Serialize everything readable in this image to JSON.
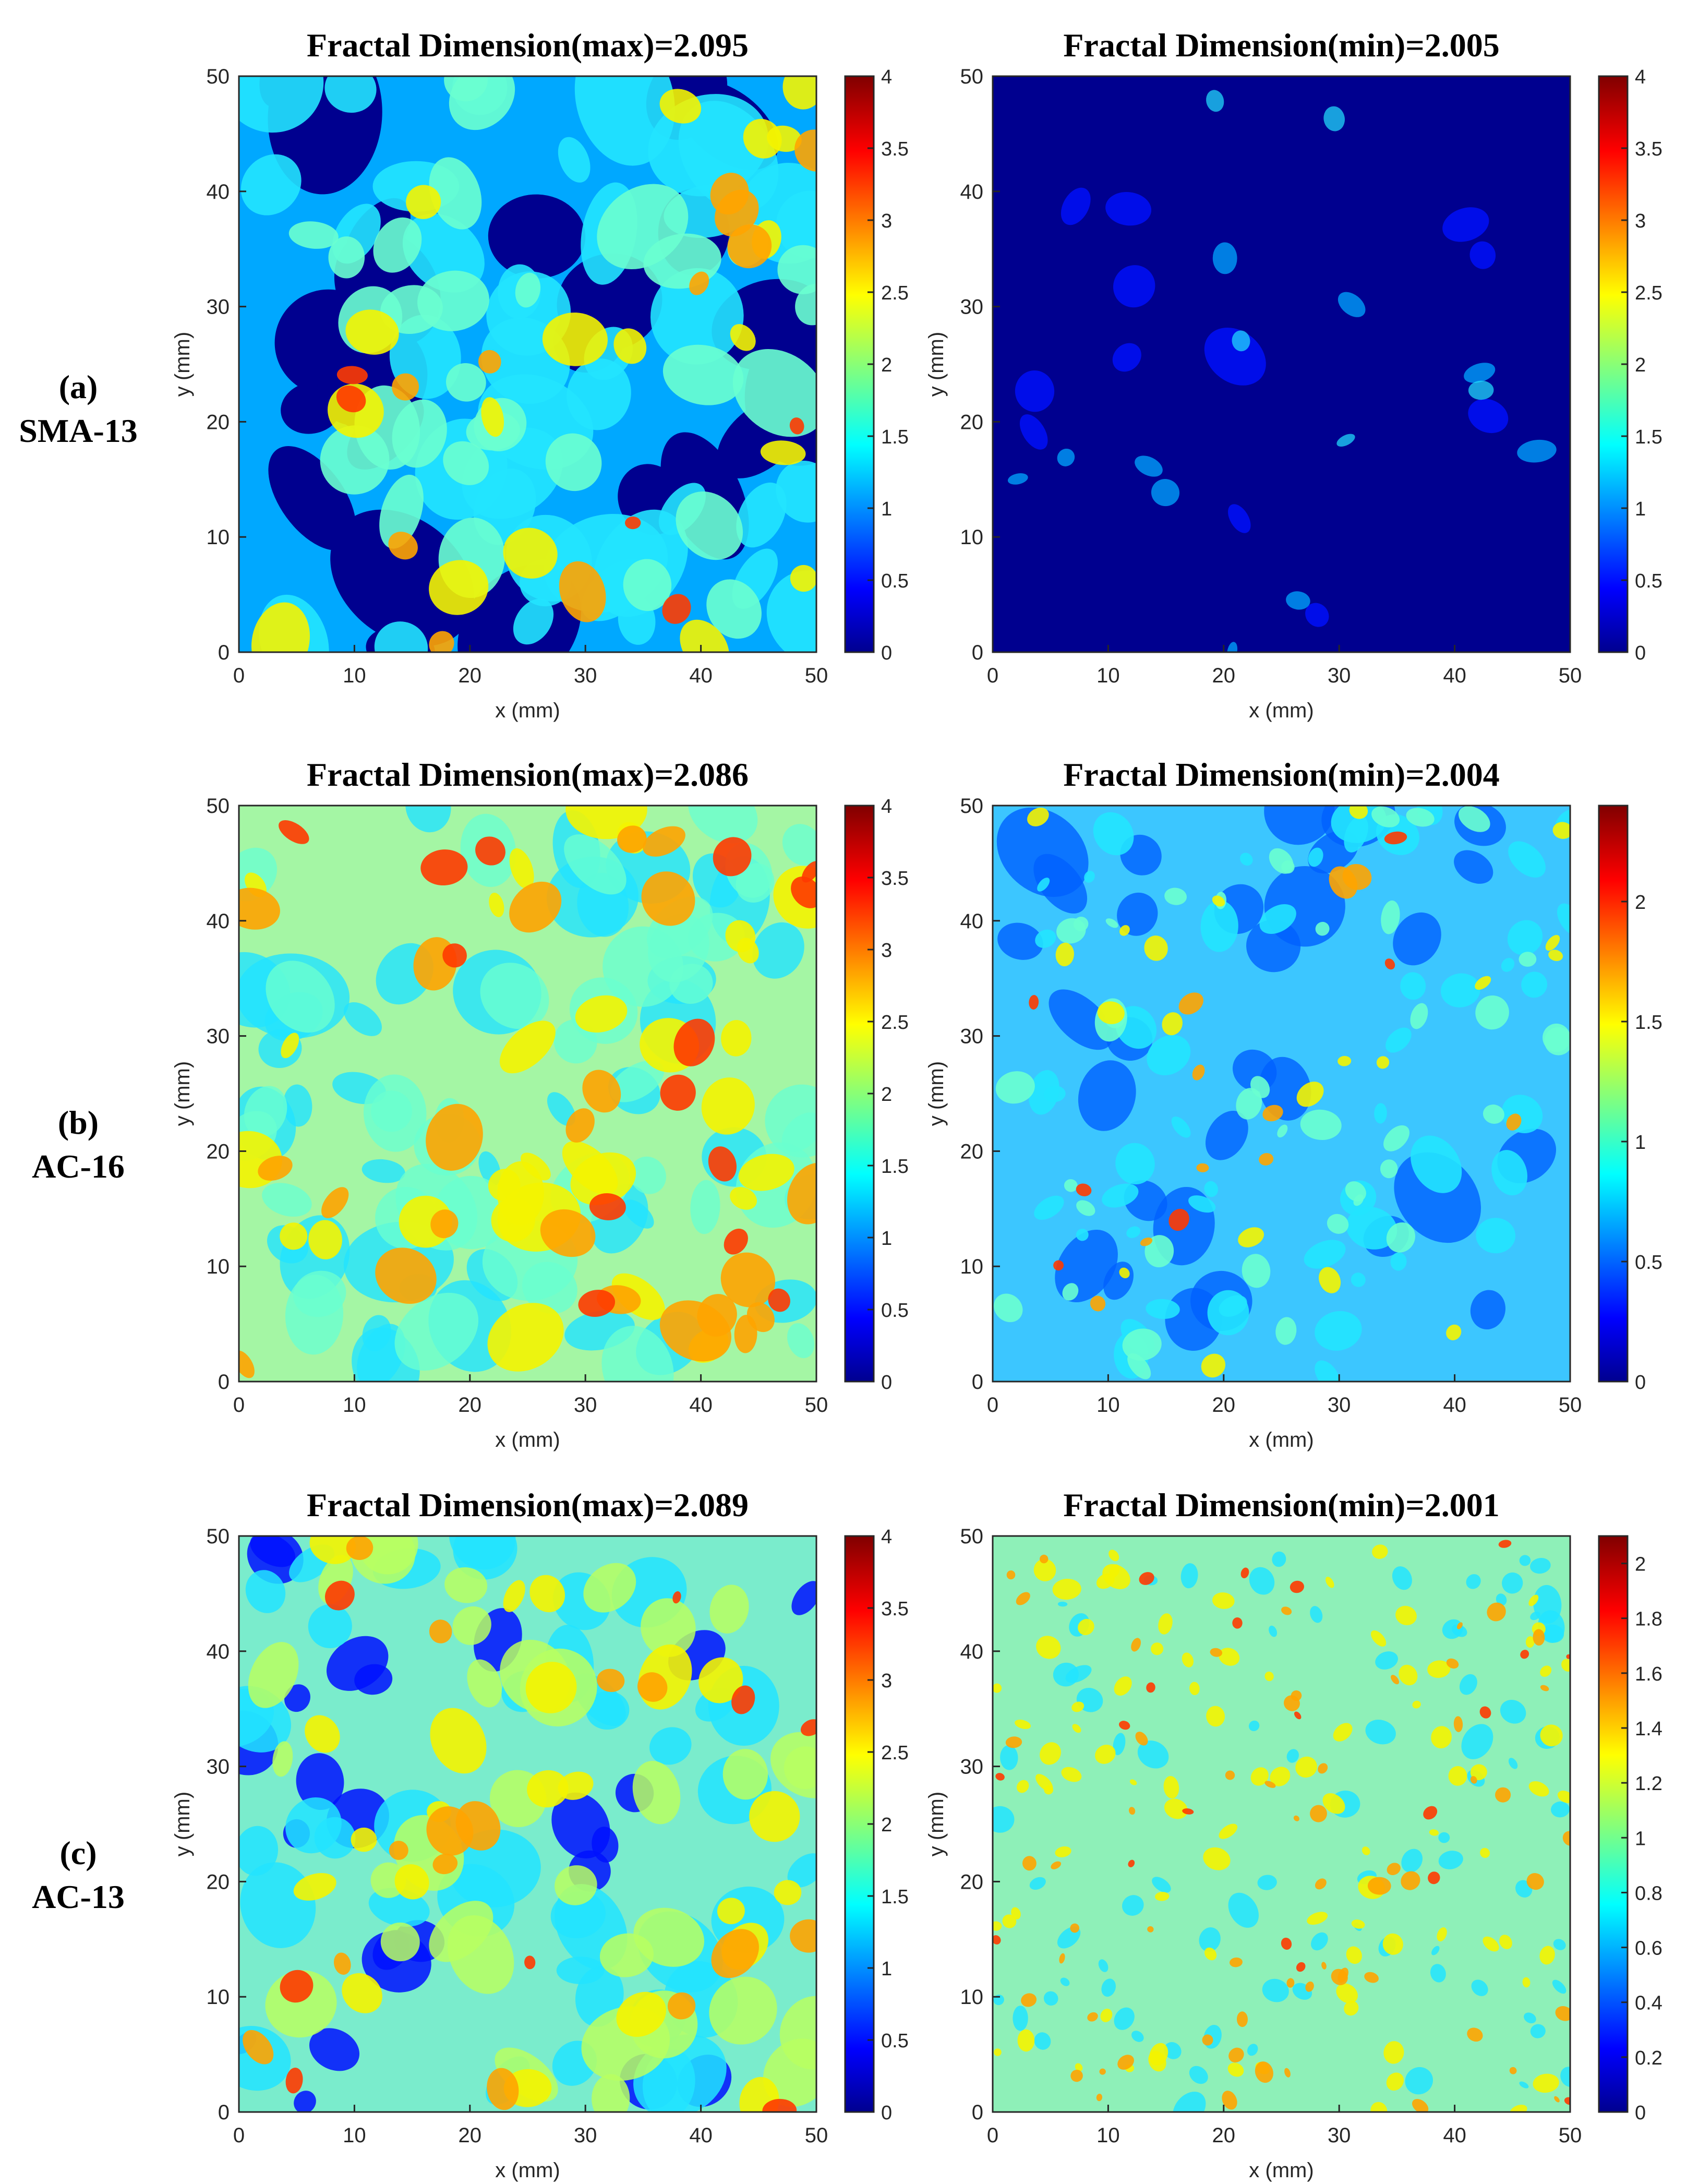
{
  "figure": {
    "rows": [
      {
        "label_letter": "(a)",
        "label_name": "SMA-13",
        "panels": [
          {
            "title": "Fractal Dimension(max)=2.095",
            "pattern": "sma-max"
          },
          {
            "title": "Fractal Dimension(min)=2.005",
            "pattern": "sma-min"
          }
        ]
      },
      {
        "label_letter": "(b)",
        "label_name": "AC-16",
        "panels": [
          {
            "title": "Fractal Dimension(max)=2.086",
            "pattern": "ac16-max"
          },
          {
            "title": "Fractal Dimension(min)=2.004",
            "pattern": "ac16-min"
          }
        ]
      },
      {
        "label_letter": "(c)",
        "label_name": "AC-13",
        "panels": [
          {
            "title": "Fractal Dimension(max)=2.089",
            "pattern": "ac13-max"
          },
          {
            "title": "Fractal Dimension(min)=2.001",
            "pattern": "ac13-min"
          }
        ]
      }
    ]
  },
  "chart_data": [
    {
      "type": "heatmap",
      "title": "Fractal Dimension(max)=2.095",
      "xlabel": "x (mm)",
      "ylabel": "y (mm)",
      "xlim": [
        0,
        50
      ],
      "ylim": [
        0,
        50
      ],
      "x_ticks": [
        "0",
        "10",
        "20",
        "30",
        "40",
        "50"
      ],
      "y_ticks": [
        "0",
        "10",
        "20",
        "30",
        "40",
        "50"
      ],
      "colormap": "jet",
      "clim": [
        0,
        4
      ],
      "colorbar_ticks": [
        "0",
        "0.5",
        "1",
        "1.5",
        "2",
        "2.5",
        "3",
        "3.5",
        "4"
      ]
    },
    {
      "type": "heatmap",
      "title": "Fractal Dimension(min)=2.005",
      "xlabel": "x (mm)",
      "ylabel": "y (mm)",
      "xlim": [
        0,
        50
      ],
      "ylim": [
        0,
        50
      ],
      "x_ticks": [
        "0",
        "10",
        "20",
        "30",
        "40",
        "50"
      ],
      "y_ticks": [
        "0",
        "10",
        "20",
        "30",
        "40",
        "50"
      ],
      "colormap": "jet",
      "clim": [
        0,
        4
      ],
      "colorbar_ticks": [
        "0",
        "0.5",
        "1",
        "1.5",
        "2",
        "2.5",
        "3",
        "3.5",
        "4"
      ]
    },
    {
      "type": "heatmap",
      "title": "Fractal Dimension(max)=2.086",
      "xlabel": "x (mm)",
      "ylabel": "y (mm)",
      "xlim": [
        0,
        50
      ],
      "ylim": [
        0,
        50
      ],
      "x_ticks": [
        "0",
        "10",
        "20",
        "30",
        "40",
        "50"
      ],
      "y_ticks": [
        "0",
        "10",
        "20",
        "30",
        "40",
        "50"
      ],
      "colormap": "jet",
      "clim": [
        0,
        4
      ],
      "colorbar_ticks": [
        "0",
        "0.5",
        "1",
        "1.5",
        "2",
        "2.5",
        "3",
        "3.5",
        "4"
      ]
    },
    {
      "type": "heatmap",
      "title": "Fractal Dimension(min)=2.004",
      "xlabel": "x (mm)",
      "ylabel": "y (mm)",
      "xlim": [
        0,
        50
      ],
      "ylim": [
        0,
        50
      ],
      "x_ticks": [
        "0",
        "10",
        "20",
        "30",
        "40",
        "50"
      ],
      "y_ticks": [
        "0",
        "10",
        "20",
        "30",
        "40",
        "50"
      ],
      "colormap": "jet",
      "clim": [
        0,
        2.4
      ],
      "colorbar_ticks": [
        "0",
        "0.5",
        "1",
        "1.5",
        "2"
      ]
    },
    {
      "type": "heatmap",
      "title": "Fractal Dimension(max)=2.089",
      "xlabel": "x (mm)",
      "ylabel": "y (mm)",
      "xlim": [
        0,
        50
      ],
      "ylim": [
        0,
        50
      ],
      "x_ticks": [
        "0",
        "10",
        "20",
        "30",
        "40",
        "50"
      ],
      "y_ticks": [
        "0",
        "10",
        "20",
        "30",
        "40",
        "50"
      ],
      "colormap": "jet",
      "clim": [
        0,
        4
      ],
      "colorbar_ticks": [
        "0",
        "0.5",
        "1",
        "1.5",
        "2",
        "2.5",
        "3",
        "3.5",
        "4"
      ]
    },
    {
      "type": "heatmap",
      "title": "Fractal Dimension(min)=2.001",
      "xlabel": "x (mm)",
      "ylabel": "y (mm)",
      "xlim": [
        0,
        50
      ],
      "ylim": [
        0,
        50
      ],
      "x_ticks": [
        "0",
        "10",
        "20",
        "30",
        "40",
        "50"
      ],
      "y_ticks": [
        "0",
        "10",
        "20",
        "30",
        "40",
        "50"
      ],
      "colormap": "jet",
      "clim": [
        0,
        2.1
      ],
      "colorbar_ticks": [
        "0",
        "0.2",
        "0.4",
        "0.6",
        "0.8",
        "1",
        "1.2",
        "1.4",
        "1.6",
        "1.8",
        "2"
      ]
    }
  ]
}
